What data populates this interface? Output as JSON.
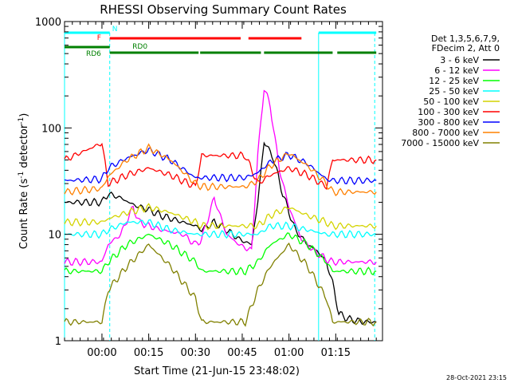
{
  "chart_data": {
    "type": "line",
    "title": "RHESSI Observing Summary Count Rates",
    "xlabel": "Start Time (21-Jun-15 23:48:02)",
    "ylabel_main": "Count Rate (s",
    "ylabel_sup1": "-1",
    "ylabel_mid": " detector",
    "ylabel_sup2": "-1",
    "ylabel_end": ")",
    "yscale": "log",
    "ylim": [
      1,
      1000
    ],
    "xlim_minutes_from_start": [
      0,
      102
    ],
    "y_ticks": [
      {
        "value": 1,
        "label": "1"
      },
      {
        "value": 10,
        "label": "10"
      },
      {
        "value": 100,
        "label": "100"
      },
      {
        "value": 1000,
        "label": "1000"
      }
    ],
    "x_ticks": [
      {
        "minute": 12,
        "label": "00:00"
      },
      {
        "minute": 27,
        "label": "00:15"
      },
      {
        "minute": 42,
        "label": "00:30"
      },
      {
        "minute": 57,
        "label": "00:45"
      },
      {
        "minute": 72,
        "label": "01:00"
      },
      {
        "minute": 87,
        "label": "01:15"
      }
    ],
    "legend_header": [
      "Det 1,3,5,6,7,9,",
      "FDecim 2, Att 0"
    ],
    "series": [
      {
        "name": "3 - 6 keV",
        "color": "#000000",
        "x": [
          0,
          12,
          14,
          18,
          22,
          27,
          31,
          38,
          42,
          44,
          48,
          52,
          56,
          60,
          62,
          64,
          67,
          70,
          74,
          78,
          81,
          84,
          86,
          88,
          91,
          96,
          100
        ],
        "y": [
          20,
          20,
          24,
          22,
          19,
          17,
          15,
          13,
          12,
          11,
          13,
          11,
          9,
          8,
          20,
          75,
          52,
          24,
          11,
          8,
          7,
          5.5,
          3.5,
          1.8,
          1.6,
          1.5,
          1.5
        ]
      },
      {
        "name": "6 - 12 keV",
        "color": "#ff00ff",
        "x": [
          0,
          12,
          14,
          18,
          22,
          24,
          27,
          31,
          38,
          42,
          44,
          48,
          52,
          56,
          60,
          62,
          64,
          66,
          69,
          72,
          76,
          80,
          84,
          86,
          88,
          91,
          96,
          100
        ],
        "y": [
          5.5,
          5.5,
          8,
          10,
          18,
          13,
          12,
          11,
          10,
          8,
          9,
          22,
          10,
          8,
          7,
          55,
          240,
          160,
          40,
          18,
          9,
          7,
          5.8,
          5.5,
          5.5,
          5.5,
          5.5,
          5.5
        ]
      },
      {
        "name": "12 - 25 keV",
        "color": "#00ff00",
        "x": [
          0,
          12,
          14,
          20,
          27,
          34,
          42,
          44,
          52,
          58,
          62,
          66,
          72,
          78,
          84,
          86,
          90,
          96,
          100
        ],
        "y": [
          4.5,
          4.5,
          5.5,
          8,
          10,
          8,
          5.5,
          4.5,
          4.5,
          4.5,
          5.5,
          8,
          10,
          8,
          5.5,
          4.5,
          4.5,
          4.5,
          4.5
        ]
      },
      {
        "name": "25 - 50 keV",
        "color": "#00ffff",
        "x": [
          0,
          12,
          14,
          20,
          27,
          34,
          42,
          44,
          52,
          58,
          62,
          66,
          72,
          78,
          84,
          86,
          90,
          96,
          100
        ],
        "y": [
          10,
          10,
          11,
          13,
          13,
          11,
          10,
          10,
          10,
          10,
          10,
          12,
          12,
          11,
          10,
          10,
          10,
          10,
          10
        ]
      },
      {
        "name": "50 - 100 keV",
        "color": "#d4d400",
        "x": [
          0,
          12,
          14,
          20,
          27,
          34,
          42,
          44,
          52,
          58,
          62,
          66,
          72,
          78,
          84,
          86,
          90,
          96,
          100
        ],
        "y": [
          13,
          13,
          14,
          16,
          18,
          16,
          13,
          12,
          12,
          12,
          12,
          15,
          18,
          15,
          13,
          12,
          12,
          12,
          12
        ]
      },
      {
        "name": "100 - 300 keV",
        "color": "#ff0000",
        "x": [
          0,
          12,
          14,
          20,
          27,
          34,
          42,
          44,
          52,
          58,
          62,
          66,
          72,
          78,
          84,
          86,
          90,
          96,
          100
        ],
        "y": [
          50,
          72,
          30,
          36,
          42,
          36,
          28,
          55,
          55,
          55,
          30,
          36,
          42,
          36,
          28,
          50,
          50,
          50,
          50
        ]
      },
      {
        "name": "300 - 800 keV",
        "color": "#0000ff",
        "x": [
          0,
          12,
          14,
          20,
          27,
          34,
          42,
          44,
          52,
          58,
          62,
          66,
          72,
          78,
          84,
          86,
          90,
          96,
          100
        ],
        "y": [
          32,
          33,
          42,
          52,
          62,
          50,
          34,
          34,
          34,
          34,
          38,
          48,
          56,
          46,
          33,
          32,
          32,
          32,
          32
        ]
      },
      {
        "name": "800 - 7000 keV",
        "color": "#ff8000",
        "x": [
          0,
          12,
          14,
          20,
          27,
          34,
          42,
          44,
          52,
          58,
          62,
          66,
          72,
          78,
          84,
          86,
          90,
          96,
          100
        ],
        "y": [
          25,
          27,
          35,
          50,
          65,
          50,
          30,
          28,
          28,
          28,
          32,
          44,
          58,
          44,
          30,
          25,
          25,
          25,
          25
        ]
      },
      {
        "name": "7000 - 15000 keV",
        "color": "#808000",
        "x": [
          0,
          12,
          14,
          20,
          27,
          34,
          42,
          44,
          52,
          58,
          62,
          66,
          72,
          78,
          84,
          86,
          90,
          96,
          100
        ],
        "y": [
          1.5,
          1.5,
          3,
          5,
          8,
          5,
          2.5,
          1.5,
          1.5,
          1.5,
          3,
          5,
          8,
          5,
          2.5,
          1.5,
          1.5,
          1.5,
          1.5
        ]
      }
    ],
    "annotation_bars": [
      {
        "label": "N",
        "color": "#00ffff",
        "segments": [
          [
            0,
            14.5
          ],
          [
            81.5,
            100
          ]
        ]
      },
      {
        "label": "F",
        "color": "#ff0000",
        "segments": [
          [
            14.5,
            56.5
          ],
          [
            59,
            76
          ]
        ]
      },
      {
        "label": "RD0",
        "color": "#008000",
        "segments": [
          [
            0,
            14.5
          ]
        ]
      },
      {
        "label": "RD6",
        "color": "#008000",
        "segments": [
          [
            14.5,
            43
          ],
          [
            43.5,
            63
          ],
          [
            64,
            86
          ],
          [
            87.5,
            100
          ]
        ]
      }
    ],
    "night_boundaries": [
      0,
      14.5,
      81.5,
      99.5
    ],
    "saa_boundaries": [],
    "timestamp": "28-Oct-2021 23:15"
  }
}
